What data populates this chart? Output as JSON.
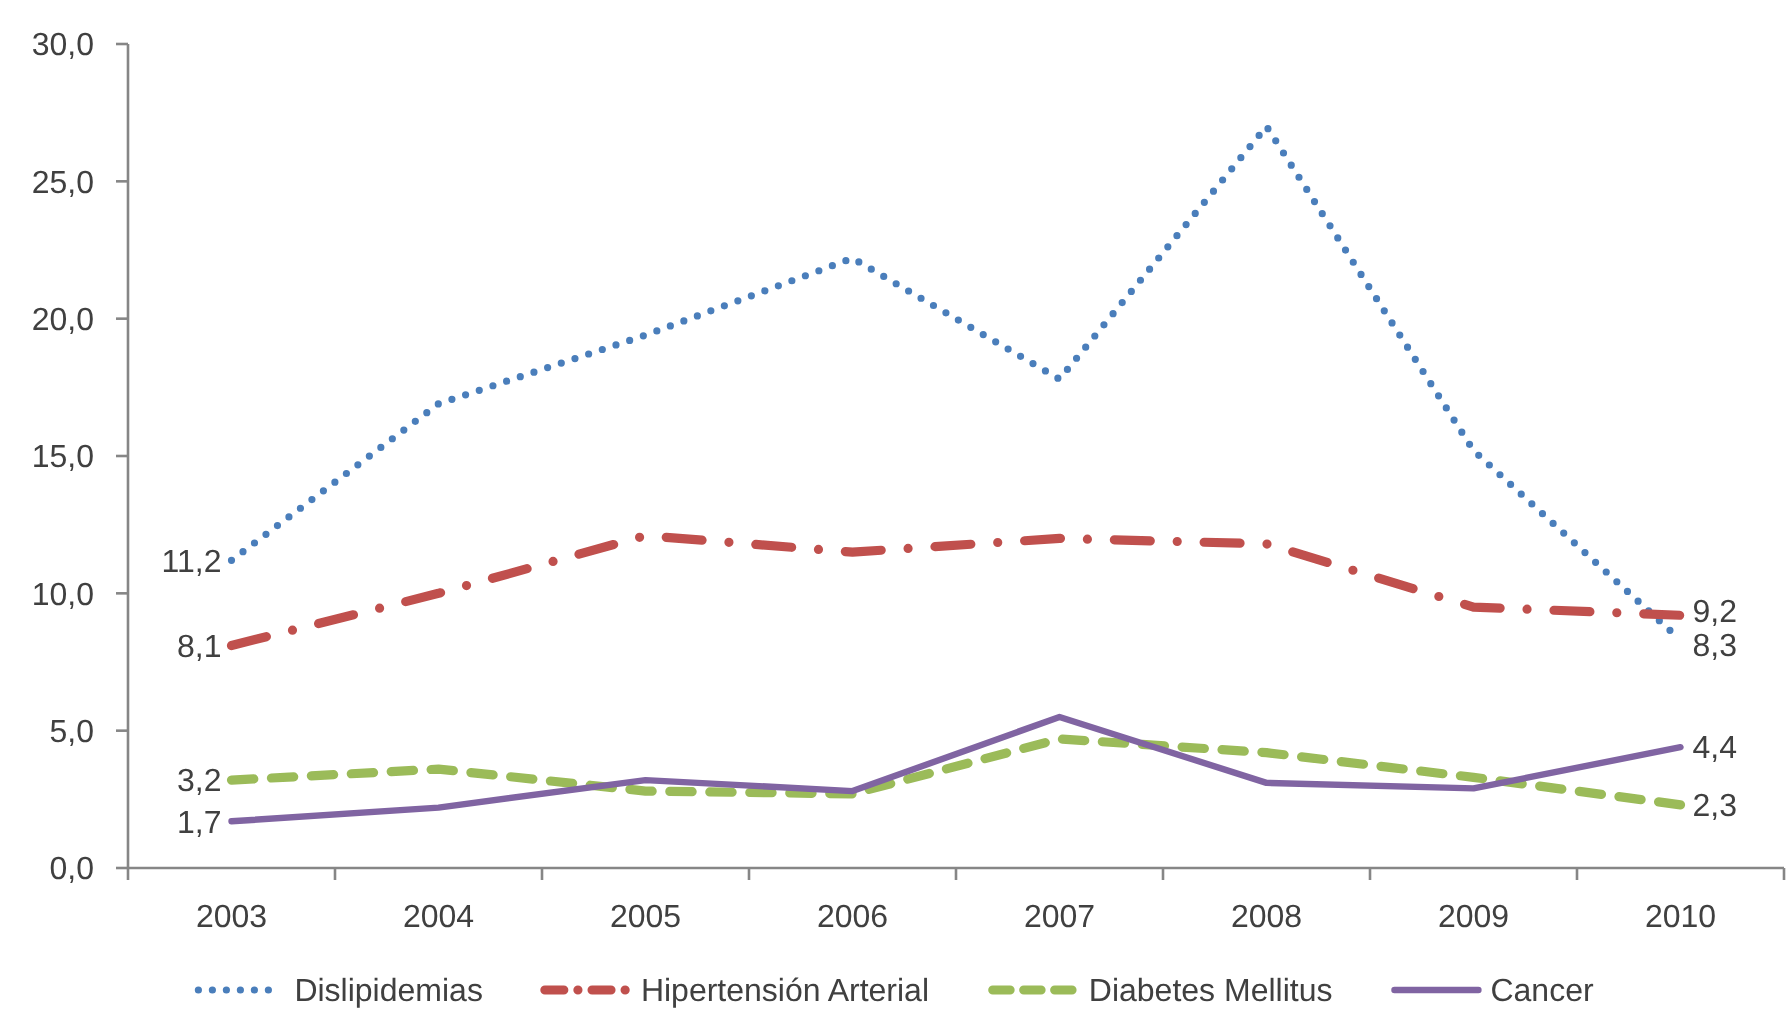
{
  "chart_data": {
    "type": "line",
    "categories": [
      "2003",
      "2004",
      "2005",
      "2006",
      "2007",
      "2008",
      "2009",
      "2010"
    ],
    "ylim": [
      0,
      30
    ],
    "yticks": [
      {
        "value": 0,
        "label": "0,0"
      },
      {
        "value": 5,
        "label": "5,0"
      },
      {
        "value": 10,
        "label": "10,0"
      },
      {
        "value": 15,
        "label": "15,0"
      },
      {
        "value": 20,
        "label": "20,0"
      },
      {
        "value": 25,
        "label": "25,0"
      },
      {
        "value": 30,
        "label": "30,0"
      }
    ],
    "legend": "bottom",
    "series": [
      {
        "name": "Dislipidemias",
        "color": "#4a7ebb",
        "line_style": "dotted",
        "values": [
          11.2,
          16.9,
          19.4,
          22.2,
          17.8,
          27.0,
          15.2,
          8.3
        ],
        "value_labels": [
          "11,2",
          null,
          null,
          null,
          null,
          null,
          null,
          "8,3"
        ]
      },
      {
        "name": "Hipertensión Arterial",
        "color": "#c0504d",
        "line_style": "dashdot",
        "values": [
          8.1,
          10.0,
          12.1,
          11.5,
          12.0,
          11.8,
          9.5,
          9.2
        ],
        "value_labels": [
          "8,1",
          null,
          null,
          null,
          null,
          null,
          null,
          "9,2"
        ]
      },
      {
        "name": "Diabetes Mellitus",
        "color": "#9bbb59",
        "line_style": "dashed",
        "values": [
          3.2,
          3.6,
          2.8,
          2.7,
          4.7,
          4.2,
          3.3,
          2.3
        ],
        "value_labels": [
          "3,2",
          null,
          null,
          null,
          null,
          null,
          null,
          "2,3"
        ]
      },
      {
        "name": "Cancer",
        "color": "#8064a2",
        "line_style": "solid",
        "values": [
          1.7,
          2.2,
          3.2,
          2.8,
          5.5,
          3.1,
          2.9,
          4.4
        ],
        "value_labels": [
          "1,7",
          null,
          null,
          null,
          null,
          null,
          null,
          "4,4"
        ]
      }
    ]
  }
}
